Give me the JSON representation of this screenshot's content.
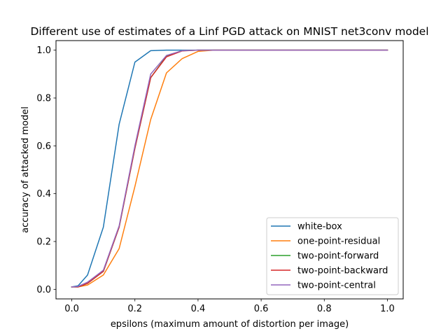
{
  "chart_data": {
    "type": "line",
    "title": "Different use of estimates of a Linf PGD attack on MNIST net3conv model",
    "xlabel": "epsilons (maximum amount of distortion per image)",
    "ylabel": "accuracy of attacked model",
    "xlim": [
      -0.05,
      1.05
    ],
    "ylim": [
      -0.04,
      1.04
    ],
    "xticks": [
      0.0,
      0.2,
      0.4,
      0.6,
      0.8,
      1.0
    ],
    "xtick_labels": [
      "0.0",
      "0.2",
      "0.4",
      "0.6",
      "0.8",
      "1.0"
    ],
    "yticks": [
      0.0,
      0.2,
      0.4,
      0.6,
      0.8,
      1.0
    ],
    "ytick_labels": [
      "0.0",
      "0.2",
      "0.4",
      "0.6",
      "0.8",
      "1.0"
    ],
    "grid": false,
    "legend_position": "lower-right",
    "x": [
      0.0,
      0.02,
      0.05,
      0.1,
      0.15,
      0.2,
      0.25,
      0.3,
      0.35,
      0.4,
      0.45,
      0.5,
      0.6,
      0.7,
      0.8,
      0.9,
      1.0
    ],
    "series": [
      {
        "name": "white-box",
        "color": "#1f77b4",
        "values": [
          0.01,
          0.015,
          0.06,
          0.26,
          0.69,
          0.95,
          0.998,
          1.0,
          1.0,
          1.0,
          1.0,
          1.0,
          1.0,
          1.0,
          1.0,
          1.0,
          1.0
        ]
      },
      {
        "name": "one-point-residual",
        "color": "#ff7f0e",
        "values": [
          0.01,
          0.01,
          0.018,
          0.06,
          0.17,
          0.43,
          0.71,
          0.905,
          0.965,
          0.995,
          1.0,
          1.0,
          1.0,
          1.0,
          1.0,
          1.0,
          1.0
        ]
      },
      {
        "name": "two-point-forward",
        "color": "#2ca02c",
        "values": [
          0.01,
          0.01,
          0.025,
          0.075,
          0.26,
          0.59,
          0.885,
          0.975,
          0.998,
          1.0,
          1.0,
          1.0,
          1.0,
          1.0,
          1.0,
          1.0,
          1.0
        ]
      },
      {
        "name": "two-point-backward",
        "color": "#d62728",
        "values": [
          0.01,
          0.01,
          0.025,
          0.075,
          0.26,
          0.59,
          0.885,
          0.972,
          0.997,
          1.0,
          1.0,
          1.0,
          1.0,
          1.0,
          1.0,
          1.0,
          1.0
        ]
      },
      {
        "name": "two-point-central",
        "color": "#9467bd",
        "values": [
          0.01,
          0.012,
          0.03,
          0.08,
          0.265,
          0.6,
          0.9,
          0.978,
          0.998,
          1.0,
          1.0,
          1.0,
          1.0,
          1.0,
          1.0,
          1.0,
          1.0
        ]
      }
    ]
  }
}
